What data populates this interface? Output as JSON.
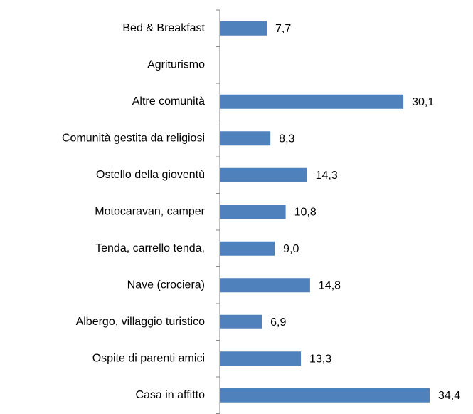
{
  "chart_data": {
    "type": "bar",
    "orientation": "horizontal",
    "categories": [
      "Bed & Breakfast",
      "Agriturismo",
      "Altre comunità",
      "Comunità gestita da religiosi",
      "Ostello della gioventù",
      "Motocaravan, camper",
      "Tenda, carrello tenda,",
      "Nave (crociera)",
      "Albergo, villaggio turistico",
      "Ospite di parenti amici",
      "Casa in affitto"
    ],
    "values": [
      7.7,
      null,
      30.1,
      8.3,
      14.3,
      10.8,
      9.0,
      14.8,
      6.9,
      13.3,
      34.4
    ],
    "value_labels": [
      "7,7",
      null,
      "30,1",
      "8,3",
      "14,3",
      "10,8",
      "9,0",
      "14,8",
      "6,9",
      "13,3",
      "34,4"
    ],
    "color": "#4f81bd",
    "xlim": [
      0,
      40
    ]
  }
}
